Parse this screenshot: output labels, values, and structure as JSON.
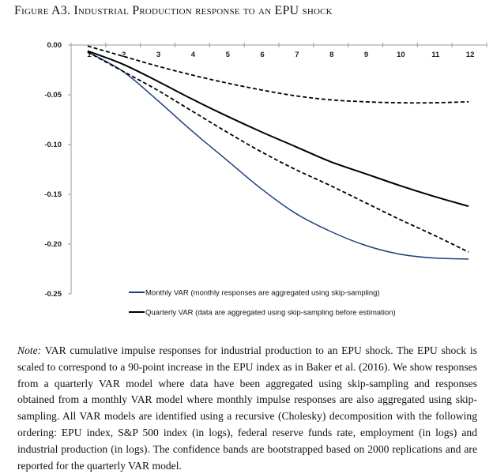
{
  "figure_title": "Figure A3. Industrial Production response to an EPU shock",
  "chart_data": {
    "type": "line",
    "title": "Figure A3. Industrial Production response to an EPU shock",
    "xlabel": "",
    "ylabel": "",
    "x": [
      "1",
      "2",
      "3",
      "4",
      "5",
      "6",
      "7",
      "8",
      "9",
      "10",
      "11",
      "12"
    ],
    "ylim": [
      -0.25,
      0.0
    ],
    "yticks": [
      "0.00",
      "-0.05",
      "-0.10",
      "-0.15",
      "-0.20",
      "-0.25"
    ],
    "ytick_values": [
      0,
      -0.05,
      -0.1,
      -0.15,
      -0.2,
      -0.25
    ],
    "grid": false,
    "legend_position": "bottom",
    "series": [
      {
        "name": "Monthly VAR (monthly responses are aggregated using skip-sampling)",
        "color": "#1f3f7a",
        "style": "solid",
        "in_legend": true,
        "values": [
          -0.007,
          -0.026,
          -0.055,
          -0.086,
          -0.115,
          -0.144,
          -0.169,
          -0.187,
          -0.201,
          -0.21,
          -0.214,
          -0.215
        ]
      },
      {
        "name": "Quarterly VAR (data are aggregated using skip-sampling before estimation)",
        "color": "#000000",
        "style": "solid",
        "in_legend": true,
        "values": [
          -0.006,
          -0.019,
          -0.036,
          -0.054,
          -0.071,
          -0.087,
          -0.102,
          -0.117,
          -0.129,
          -0.141,
          -0.152,
          -0.162
        ]
      },
      {
        "name": "Quarterly VAR upper confidence band",
        "color": "#000000",
        "style": "dashed",
        "in_legend": false,
        "values": [
          -0.001,
          -0.011,
          -0.021,
          -0.03,
          -0.038,
          -0.045,
          -0.051,
          -0.055,
          -0.057,
          -0.058,
          -0.058,
          -0.057
        ]
      },
      {
        "name": "Quarterly VAR lower confidence band",
        "color": "#000000",
        "style": "dashed",
        "in_legend": false,
        "values": [
          -0.007,
          -0.026,
          -0.045,
          -0.066,
          -0.087,
          -0.107,
          -0.125,
          -0.141,
          -0.158,
          -0.175,
          -0.191,
          -0.208
        ]
      }
    ]
  },
  "note": {
    "label": "Note:",
    "text": "VAR cumulative impulse responses for industrial production to an EPU shock. The EPU shock is scaled to correspond to a 90-point increase in the EPU index as in Baker et al. (2016). We show responses from a quarterly VAR model where data have been aggregated using skip-sampling and responses obtained from a monthly VAR model where monthly impulse responses are also aggregated using skip-sampling. All VAR models are identified using a recursive (Cholesky) decomposition with the following ordering: EPU index, S&P 500 index (in logs), federal reserve funds rate, employment (in logs) and industrial production (in logs). The confidence bands are bootstrapped based on 2000 replications and are reported for the quarterly VAR model."
  }
}
